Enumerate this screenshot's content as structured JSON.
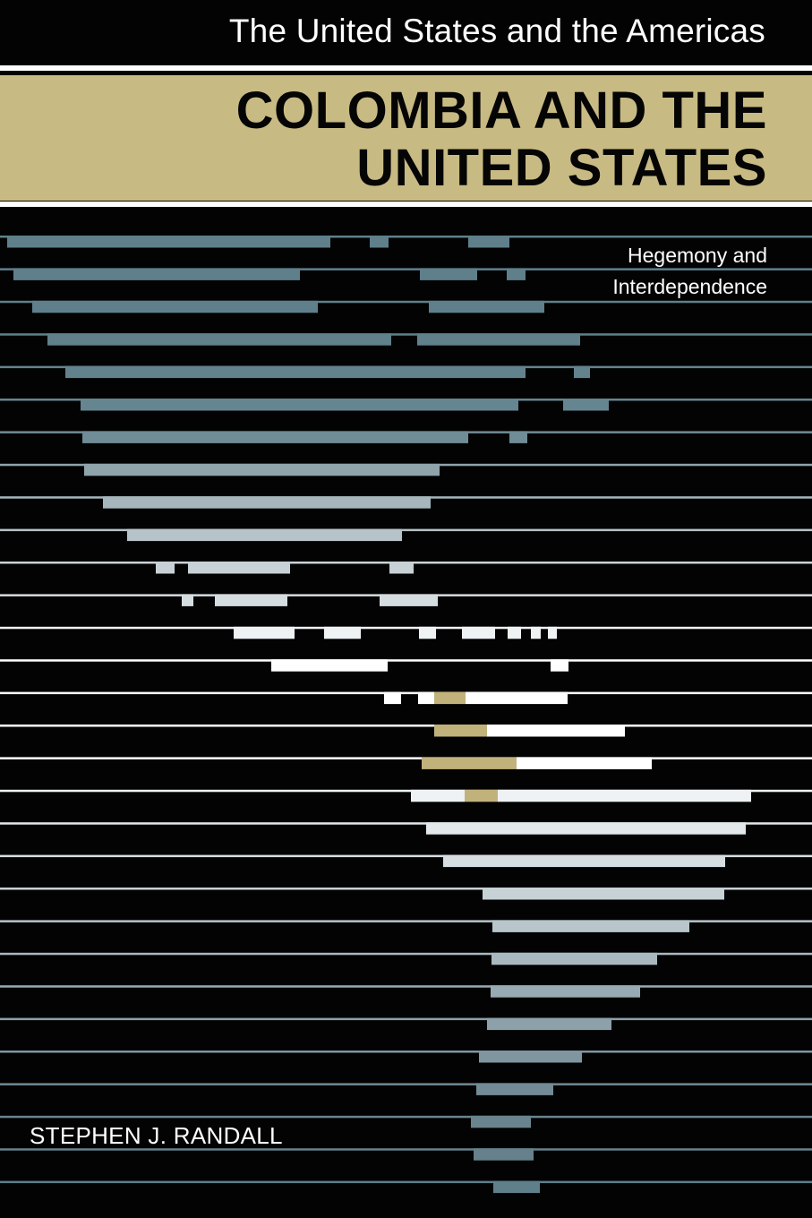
{
  "cover": {
    "series_title": "The United States and the Americas",
    "title_line1": "COLOMBIA AND THE",
    "title_line2": "UNITED STATES",
    "subtitle_line1": "Hegemony and",
    "subtitle_line2": "Interdependence",
    "author": "STEPHEN J. RANDALL"
  },
  "colors": {
    "background": "#030303",
    "band": "#c8ba83",
    "accent_tan": "#c1b27c",
    "stripe_dark": "#5f7f8b",
    "stripe_light": "#ffffff"
  }
}
